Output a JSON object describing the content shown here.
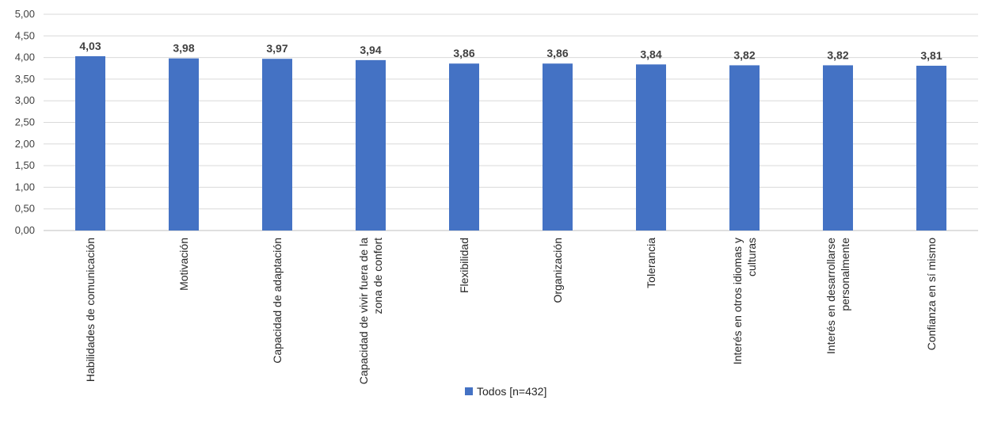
{
  "chart_data": {
    "type": "bar",
    "categories": [
      "Habilidades de comunicación",
      "Motivación",
      "Capacidad de adaptación",
      "Capacidad de vivir fuera de la zona de confort",
      "Flexibilidad",
      "Organización",
      "Tolerancia",
      "Interés en otros idiomas y culturas",
      "Interés en desarrollarse personalmente",
      "Confianza en sí mismo"
    ],
    "category_lines": [
      [
        "Habilidades de comunicación"
      ],
      [
        "Motivación"
      ],
      [
        "Capacidad de adaptación"
      ],
      [
        "Capacidad de vivir fuera de la",
        "zona de confort"
      ],
      [
        "Flexibilidad"
      ],
      [
        "Organización"
      ],
      [
        "Tolerancia"
      ],
      [
        "Interés en otros idiomas y",
        "culturas"
      ],
      [
        "Interés en desarrollarse",
        "personalmente"
      ],
      [
        "Confianza en sí mismo"
      ]
    ],
    "series": [
      {
        "name": "Todos [n=432]",
        "values": [
          4.03,
          3.98,
          3.97,
          3.94,
          3.86,
          3.86,
          3.84,
          3.82,
          3.82,
          3.81
        ],
        "value_labels": [
          "4,03",
          "3,98",
          "3,97",
          "3,94",
          "3,86",
          "3,86",
          "3,84",
          "3,82",
          "3,82",
          "3,81"
        ]
      }
    ],
    "y_ticks": [
      "0,00",
      "0,50",
      "1,00",
      "1,50",
      "2,00",
      "2,50",
      "3,00",
      "3,50",
      "4,00",
      "4,50",
      "5,00"
    ],
    "ylim": [
      0,
      5
    ],
    "grid": true,
    "legend_position": "bottom",
    "color": "#4472C4",
    "title": "",
    "xlabel": "",
    "ylabel": ""
  },
  "legend": {
    "label": "Todos [n=432]"
  }
}
